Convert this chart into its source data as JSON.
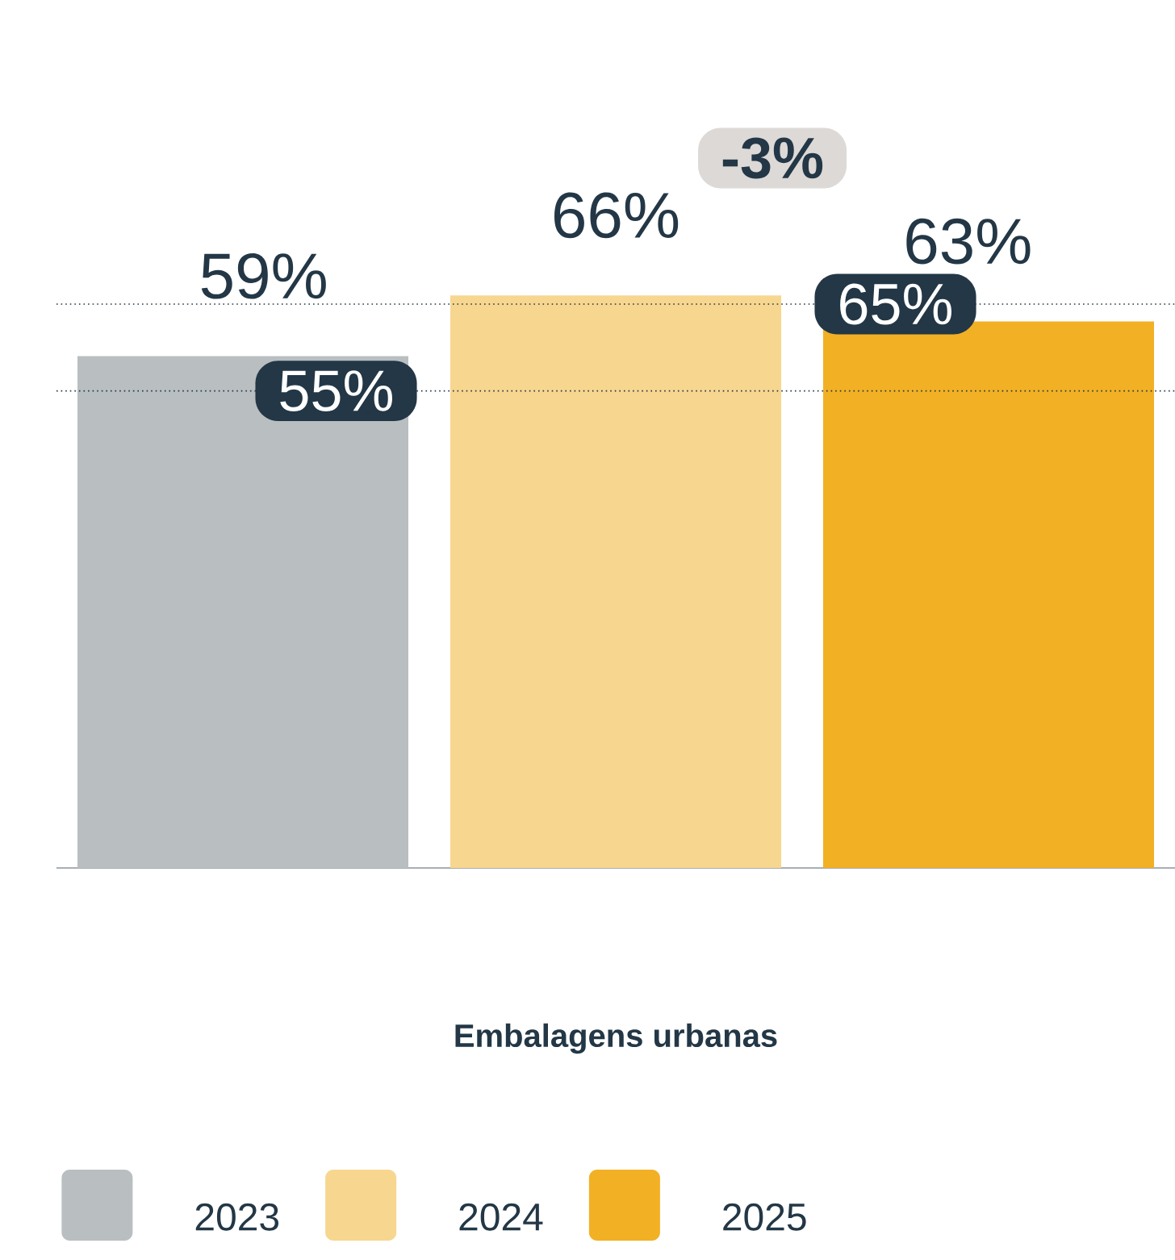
{
  "chart_data": {
    "type": "bar",
    "categories": [
      null
    ],
    "xlabel": "Embalagens urbanas",
    "series": [
      {
        "name": "2023",
        "color": "#b9bec1",
        "values": [
          59
        ],
        "value_labels": [
          "59%"
        ]
      },
      {
        "name": "2024",
        "color": "#f7d68f",
        "values": [
          66
        ],
        "value_labels": [
          "66%"
        ]
      },
      {
        "name": "2025",
        "color": "#f2b024",
        "values": [
          63
        ],
        "value_labels": [
          "63%"
        ]
      }
    ],
    "ref_lines": [
      {
        "axis": "y",
        "value": 55,
        "label": "55%",
        "color": "#233746",
        "line_style": "dotted"
      },
      {
        "axis": "y",
        "value": 65,
        "label": "65%",
        "color": "#233746",
        "line_style": "dotted"
      }
    ],
    "annotations": [
      "-3%"
    ],
    "legend": "bottom"
  }
}
